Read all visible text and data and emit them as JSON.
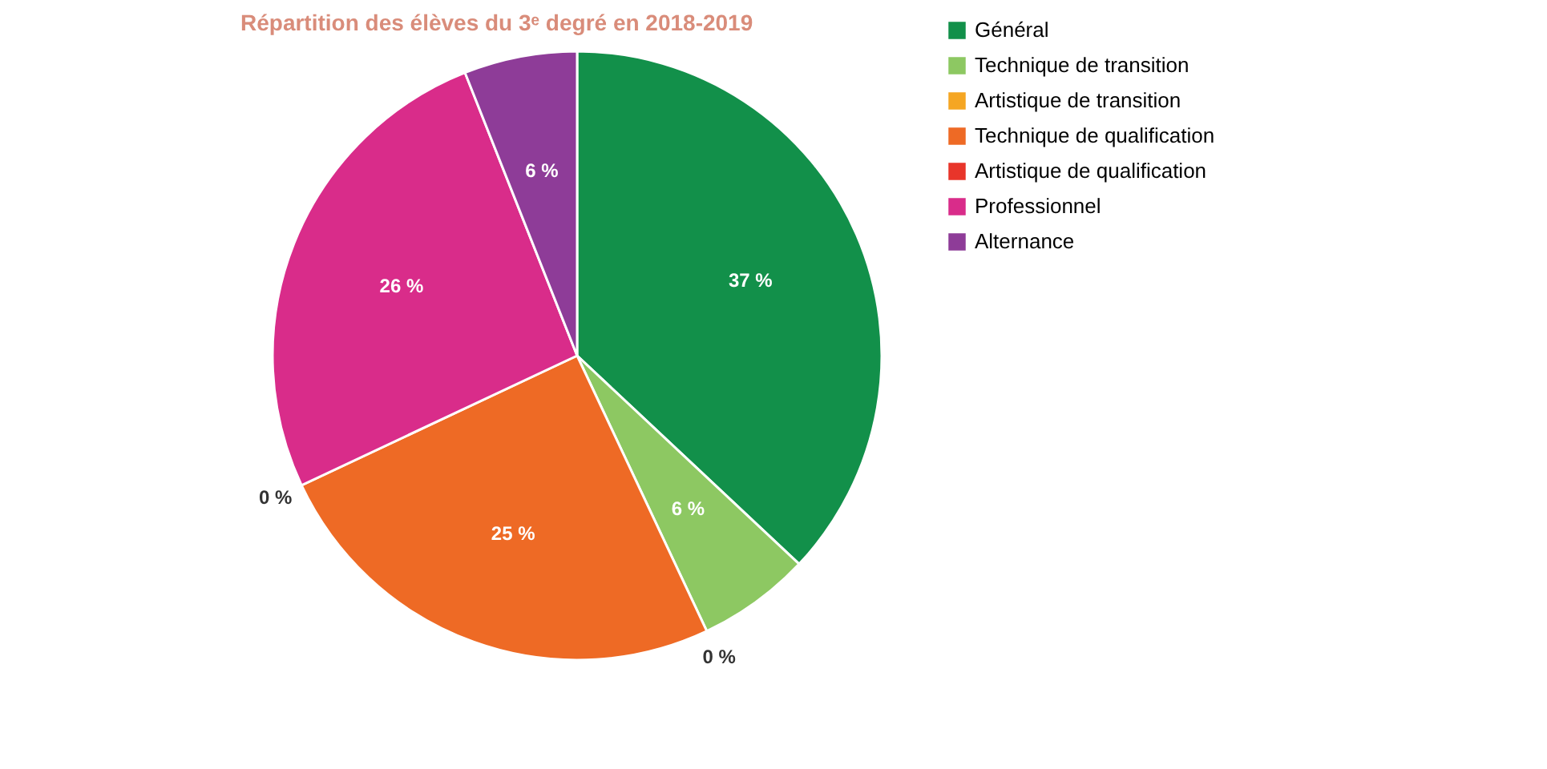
{
  "chart_data": {
    "type": "pie",
    "title": "Répartition des élèves du 3ᵉ degré en 2018-2019",
    "categories": [
      "Général",
      "Technique de transition",
      "Artistique de transition",
      "Technique de qualification",
      "Artistique de qualification",
      "Professionnel",
      "Alternance"
    ],
    "values": [
      37,
      6,
      0,
      25,
      0,
      26,
      6
    ],
    "value_labels": [
      "37 %",
      "6 %",
      "0 %",
      "25 %",
      "0 %",
      "26 %",
      "6 %"
    ],
    "colors": [
      "#12904a",
      "#8dc862",
      "#f5a623",
      "#ee6a25",
      "#e8352a",
      "#d92c8a",
      "#8e3c98"
    ],
    "legend": "right"
  }
}
